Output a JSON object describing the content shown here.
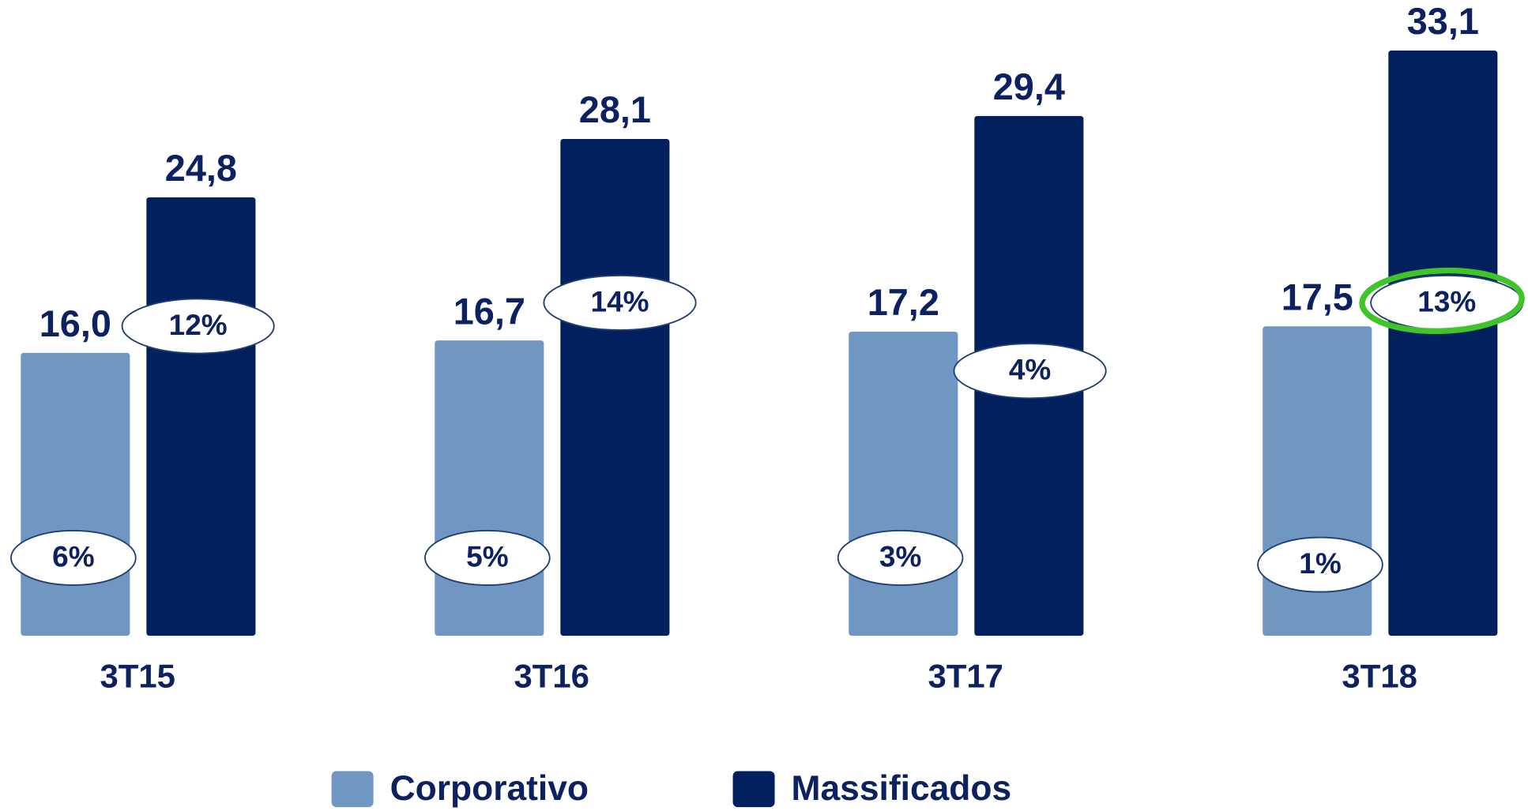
{
  "chart_data": {
    "type": "bar",
    "categories": [
      "3T15",
      "3T16",
      "3T17",
      "3T18"
    ],
    "series": [
      {
        "name": "Corporativo",
        "color": "#7096c2",
        "values": [
          16.0,
          16.7,
          17.2,
          17.5
        ],
        "value_labels": [
          "16,0",
          "16,7",
          "17,2",
          "17,5"
        ],
        "growth": [
          6,
          5,
          3,
          1
        ],
        "growth_labels": [
          "6%",
          "5%",
          "3%",
          "1%"
        ]
      },
      {
        "name": "Massificados",
        "color": "#02205e",
        "values": [
          24.8,
          28.1,
          29.4,
          33.1
        ],
        "value_labels": [
          "24,8",
          "28,1",
          "29,4",
          "33,1"
        ],
        "growth": [
          12,
          14,
          4,
          13
        ],
        "growth_labels": [
          "12%",
          "14%",
          "4%",
          "13%"
        ]
      }
    ],
    "ylim": [
      0,
      35
    ],
    "grid": false
  }
}
